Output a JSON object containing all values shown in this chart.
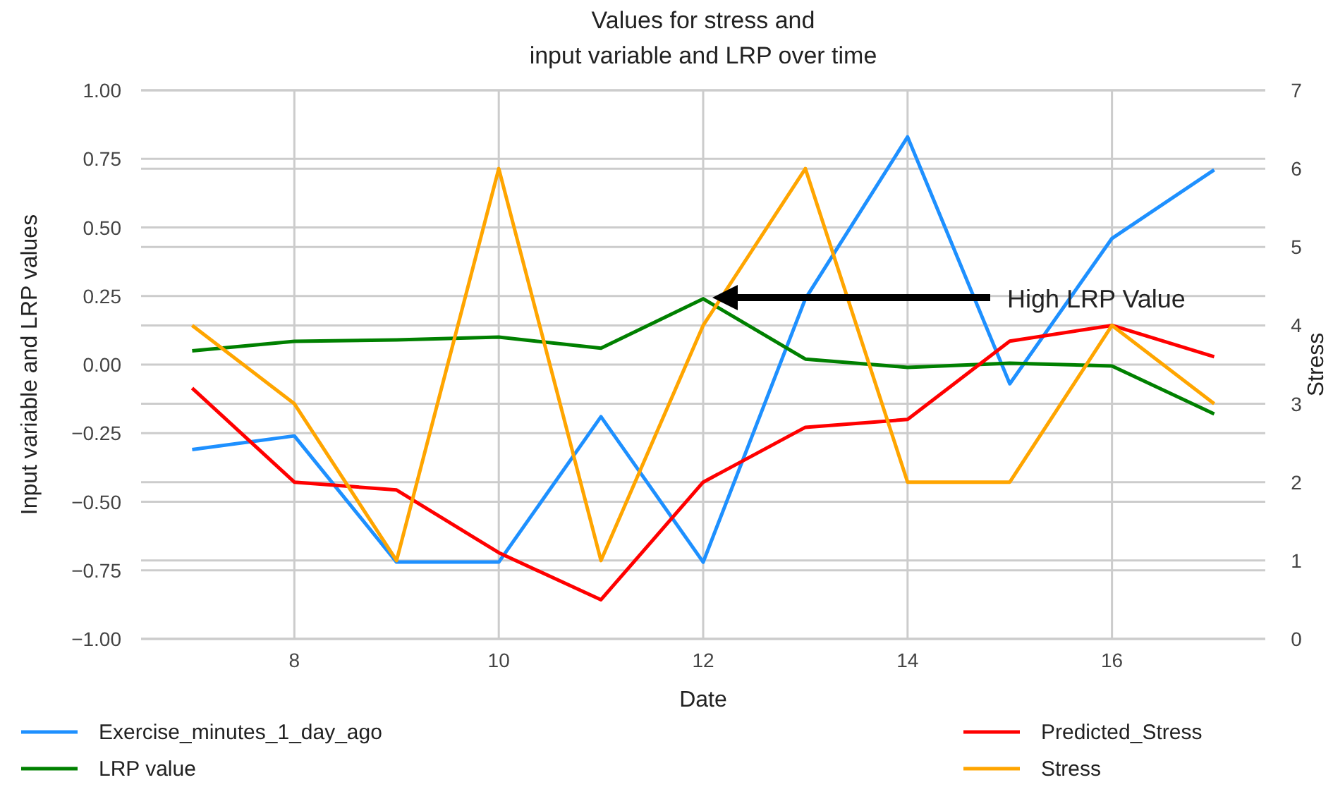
{
  "chart_data": {
    "type": "line",
    "title": "Values for stress and\ninput variable and LRP over time",
    "xlabel": "Date",
    "ylabel": "Input variable and LRP values",
    "y2label": "Stress",
    "x": [
      7,
      8,
      9,
      10,
      11,
      12,
      13,
      14,
      15,
      16,
      17
    ],
    "series": [
      {
        "name": "Exercise_minutes_1_day_ago",
        "color": "#1e90ff",
        "values": [
          -0.31,
          -0.26,
          -0.72,
          -0.72,
          -0.19,
          -0.72,
          0.24,
          0.83,
          -0.07,
          0.46,
          0.71
        ]
      },
      {
        "name": "LRP value",
        "color": "#008000",
        "values": [
          0.05,
          0.085,
          0.09,
          0.1,
          0.06,
          0.24,
          0.02,
          -0.01,
          0.005,
          -0.005,
          -0.18
        ]
      },
      {
        "name": "Predicted_Stress",
        "color": "#ff0000",
        "axis": "y2",
        "values": [
          3.2,
          2.0,
          1.9,
          1.1,
          0.5,
          2.0,
          2.7,
          2.8,
          3.8,
          4.0,
          3.6
        ]
      },
      {
        "name": "Stress",
        "color": "#ffa500",
        "axis": "y2",
        "values": [
          4,
          3,
          1,
          6,
          1,
          4,
          6,
          2,
          2,
          4,
          3
        ]
      }
    ],
    "xlim": [
      6.5,
      17.5
    ],
    "xticks": [
      8,
      10,
      12,
      14,
      16
    ],
    "ylim": [
      -1,
      1
    ],
    "yticks": [
      {
        "value": -1,
        "label": "−1.00"
      },
      {
        "value": -0.75,
        "label": "−0.75"
      },
      {
        "value": -0.5,
        "label": "−0.50"
      },
      {
        "value": -0.25,
        "label": "−0.25"
      },
      {
        "value": 0,
        "label": "0.00"
      },
      {
        "value": 0.25,
        "label": "0.25"
      },
      {
        "value": 0.5,
        "label": "0.50"
      },
      {
        "value": 0.75,
        "label": "0.75"
      },
      {
        "value": 1,
        "label": "1.00"
      }
    ],
    "y2lim": [
      0,
      7
    ],
    "y2ticks": [
      0,
      1,
      2,
      3,
      4,
      5,
      6,
      7
    ],
    "annotations": [
      "High LRP Value"
    ],
    "grid": true,
    "legend": "bottom",
    "marker": "none",
    "line_style": "solid"
  }
}
